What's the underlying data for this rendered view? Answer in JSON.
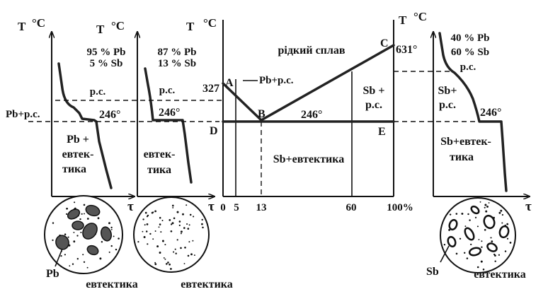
{
  "axes": {
    "temperature": "T",
    "unit": "°C",
    "time": "τ"
  },
  "cooling_curve_1": {
    "composition": [
      "95 % Pb",
      "5 % Sb"
    ],
    "region_upper": "р.с.",
    "region_left": "Pb+р.с.",
    "temperature_label": "246°",
    "region_lower": [
      "Pb +",
      "евтек-",
      "тика"
    ]
  },
  "cooling_curve_2": {
    "composition": [
      "87 % Pb",
      "13 % Sb"
    ],
    "region_upper": "р.с.",
    "temperature_label": "246°",
    "region_lower": [
      "евтек-",
      "тика"
    ]
  },
  "phase_diagram": {
    "liquid_label": "рідкий сплав",
    "point_A": "A",
    "point_B": "B",
    "point_C": "C",
    "point_D": "D",
    "point_E": "E",
    "temp_A": "327",
    "temp_C": "631°",
    "eutectic_temp": "246°",
    "left_region": "Pb+р.с.",
    "right_region": [
      "Sb +",
      "р.с."
    ],
    "lower_region": "Sb+евтектика",
    "x_ticks": [
      "0",
      "5",
      "13",
      "60",
      "100%"
    ]
  },
  "cooling_curve_3": {
    "composition": [
      "40 % Pb",
      "60 % Sb"
    ],
    "region_upper": "р.с.",
    "region_mid": [
      "Sb+",
      "р.с."
    ],
    "temperature_label": "246°",
    "region_lower": [
      "Sb+евтек-",
      "тика"
    ]
  },
  "microstructures": {
    "first": {
      "phase": "Pb",
      "matrix": "евтектика"
    },
    "second": {
      "matrix": "евтектика"
    },
    "third": {
      "phase": "Sb",
      "matrix": "евтектика"
    }
  }
}
